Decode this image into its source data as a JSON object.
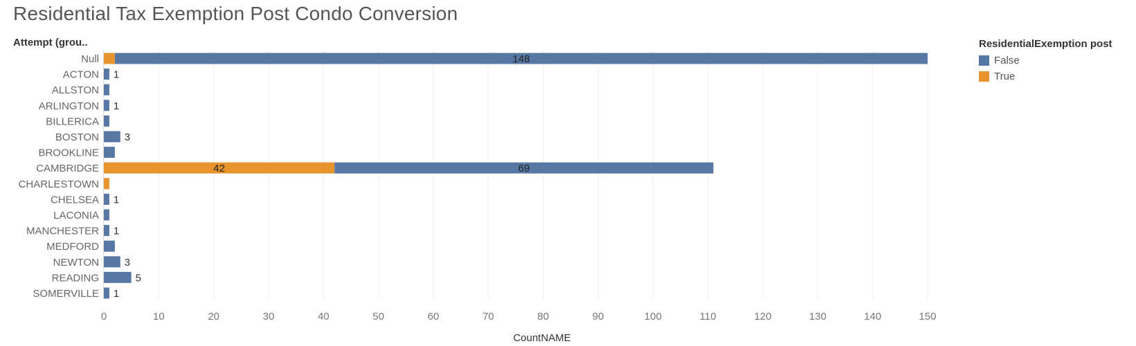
{
  "title": "Residential Tax Exemption Post Condo Conversion",
  "row_header": "Attempt (grou..",
  "legend": {
    "title": "ResidentialExemption post",
    "items": [
      {
        "label": "False",
        "color": "#5778a4"
      },
      {
        "label": "True",
        "color": "#e8942e"
      }
    ]
  },
  "chart_data": {
    "type": "bar",
    "orientation": "horizontal",
    "stacked": true,
    "title": "Residential Tax Exemption Post Condo Conversion",
    "xlabel": "CountNAME",
    "ylabel": "Attempt (grou..",
    "xlim": [
      0,
      158
    ],
    "x_ticks": [
      0,
      10,
      20,
      30,
      40,
      50,
      60,
      70,
      80,
      90,
      100,
      110,
      120,
      130,
      140,
      150
    ],
    "grid": "vertical",
    "legend_position": "top-right",
    "categories": [
      "Null",
      "ACTON",
      "ALLSTON",
      "ARLINGTON",
      "BILLERICA",
      "BOSTON",
      "BROOKLINE",
      "CAMBRIDGE",
      "CHARLESTOWN",
      "CHELSEA",
      "LACONIA",
      "MANCHESTER",
      "MEDFORD",
      "NEWTON",
      "READING",
      "SOMERVILLE"
    ],
    "series": [
      {
        "name": "True",
        "color": "#e8942e",
        "values": [
          2,
          0,
          0,
          0,
          0,
          0,
          0,
          42,
          1,
          0,
          0,
          0,
          0,
          0,
          0,
          0
        ]
      },
      {
        "name": "False",
        "color": "#5778a4",
        "values": [
          148,
          1,
          1,
          1,
          1,
          3,
          2,
          69,
          0,
          1,
          1,
          1,
          2,
          3,
          5,
          1
        ]
      }
    ],
    "data_labels": [
      {
        "category": "Null",
        "series": "False",
        "text": "148",
        "placement": "inside"
      },
      {
        "category": "ACTON",
        "series": "False",
        "text": "1",
        "placement": "outside"
      },
      {
        "category": "ARLINGTON",
        "series": "False",
        "text": "1",
        "placement": "outside"
      },
      {
        "category": "BOSTON",
        "series": "False",
        "text": "3",
        "placement": "outside"
      },
      {
        "category": "CAMBRIDGE",
        "series": "True",
        "text": "42",
        "placement": "inside"
      },
      {
        "category": "CAMBRIDGE",
        "series": "False",
        "text": "69",
        "placement": "inside"
      },
      {
        "category": "CHELSEA",
        "series": "False",
        "text": "1",
        "placement": "outside"
      },
      {
        "category": "MANCHESTER",
        "series": "False",
        "text": "1",
        "placement": "outside"
      },
      {
        "category": "NEWTON",
        "series": "False",
        "text": "3",
        "placement": "outside"
      },
      {
        "category": "READING",
        "series": "False",
        "text": "5",
        "placement": "outside"
      },
      {
        "category": "SOMERVILLE",
        "series": "False",
        "text": "1",
        "placement": "outside"
      }
    ]
  }
}
